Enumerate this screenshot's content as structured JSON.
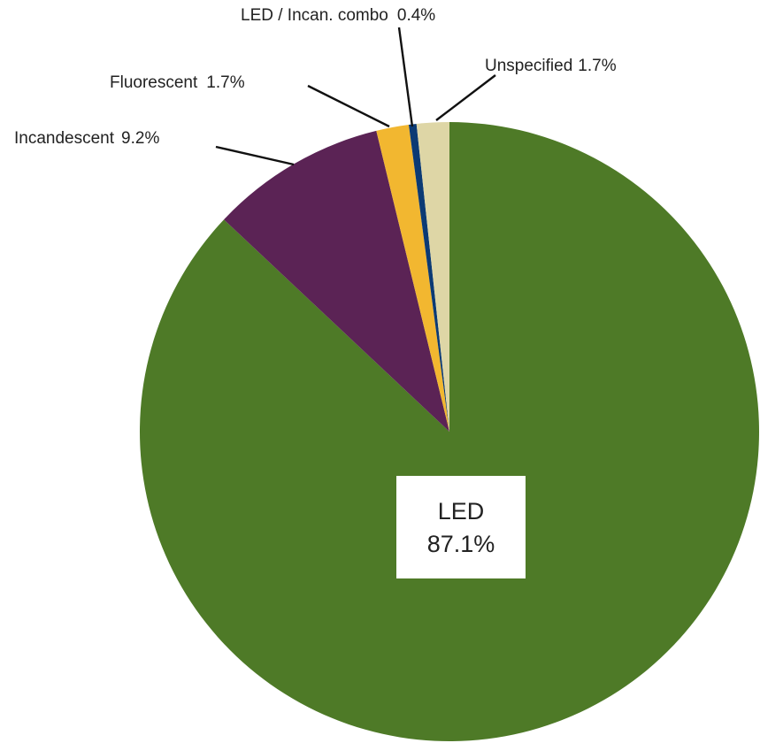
{
  "chart_data": {
    "type": "pie",
    "start_angle_deg": 0,
    "direction": "clockwise",
    "slices": [
      {
        "label": "LED",
        "value": 87.1,
        "display": "87.1%",
        "color": "#4e7a27"
      },
      {
        "label": "Incandescent",
        "value": 9.2,
        "display": "9.2%",
        "color": "#5b2355"
      },
      {
        "label": "Fluorescent",
        "value": 1.7,
        "display": "1.7%",
        "color": "#f2b730"
      },
      {
        "label": "LED / Incan. combo",
        "value": 0.4,
        "display": "0.4%",
        "color": "#0b3a74"
      },
      {
        "label": "Unspecified",
        "value": 1.7,
        "display": "1.7%",
        "color": "#ded6a6"
      }
    ],
    "center_label": {
      "name": "LED",
      "value": "87.1%"
    },
    "label_colors": {
      "text": "#222222",
      "leader": "#111111",
      "box": "#ffffff"
    }
  }
}
